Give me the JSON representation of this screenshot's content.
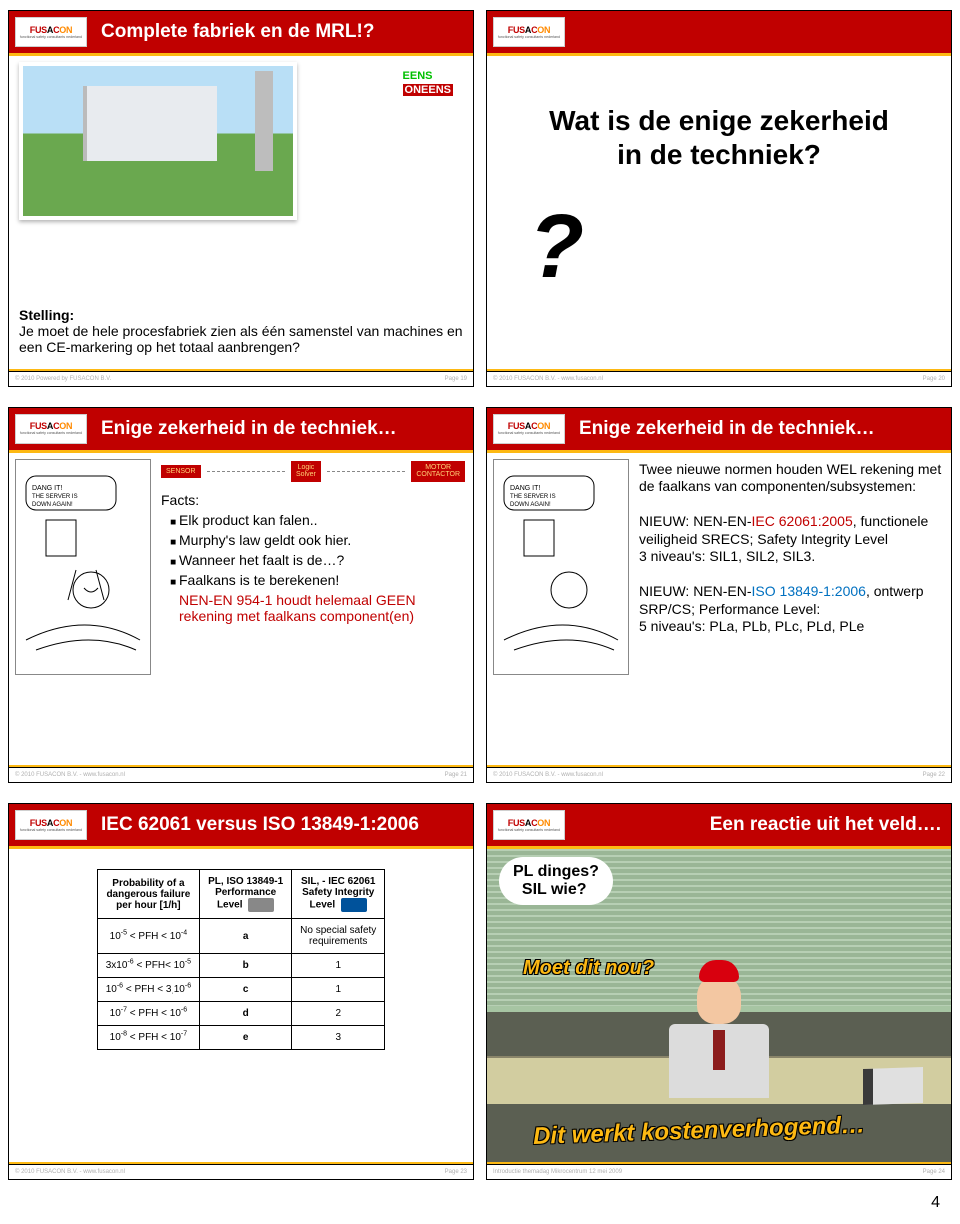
{
  "logo": {
    "text_fus": "FUS",
    "text_a": "A",
    "text_c": "C",
    "text_on": "ON",
    "sub": "functional safety consultants nederland"
  },
  "slide1": {
    "title": "Complete fabriek en de MRL!?",
    "eens": "EENS",
    "oneens": "ONEENS",
    "stelling_h": "Stelling:",
    "stelling": "Je moet de hele procesfabriek zien als één samenstel van machines en een CE-markering op het totaal aanbrengen?",
    "footer": "© 2010  Powered  by FUSACON  B.V.",
    "page": "Page 19"
  },
  "slide2": {
    "q_l1": "Wat is de enige zekerheid",
    "q_l2": "in de techniek?",
    "mark": "?",
    "footer": "© 2010 FUSACON B.V. - www.fusacon.nl",
    "page": "Page 20"
  },
  "slide3": {
    "title": "Enige zekerheid in de techniek…",
    "flow_sensor": "SENSOR",
    "flow_logic": "Logic\nSolver",
    "flow_motor": "MOTOR\nCONTACTOR",
    "facts_label": "Facts:",
    "f1": "Elk product kan falen..",
    "f2": "Murphy's law geldt ook hier.",
    "f3": "Wanneer het faalt is de…?",
    "f4": "Faalkans is te berekenen!",
    "f5": "NEN-EN 954-1 houdt helemaal GEEN rekening met faalkans component(en)",
    "footer": "© 2010 FUSACON B.V. - www.fusacon.nl",
    "page": "Page 21"
  },
  "slide4": {
    "title": "Enige zekerheid in de techniek…",
    "p1": "Twee nieuwe normen houden WEL rekening met de faalkans van componenten/subsystemen:",
    "p2_pre": "NIEUW: NEN-EN-",
    "p2_iec": "IEC 62061:2005",
    "p2_post": ", functionele veiligheid SRECS; Safety Integrity Level",
    "p2_line2": "3 niveau's: SIL1, SIL2, SIL3.",
    "p3_pre": "NIEUW: NEN-EN-",
    "p3_iso": "ISO 13849-1:2006",
    "p3_post": ", ontwerp SRP/CS; Performance Level:",
    "p3_line2": "5 niveau's: PLa, PLb, PLc, PLd, PLe",
    "footer": "© 2010 FUSACON B.V. - www.fusacon.nl",
    "page": "Page 22"
  },
  "slide5": {
    "title": "IEC 62061 versus ISO 13849-1:2006",
    "h1_l1": "Probability of a",
    "h1_l2": "dangerous failure",
    "h1_l3": "per hour  [1/h]",
    "h2_l1": "PL, ISO 13849-1",
    "h2_l2": "Performance",
    "h2_l3": "Level",
    "h3_l1": "SIL, - IEC 62061",
    "h3_l2": "Safety Integrity",
    "h3_l3": "Level",
    "rows": [
      {
        "p_html": "10<sup>-5</sup>  <  PFH  <  10<sup>-4</sup>",
        "pl": "a",
        "sil_html": "No special safety<br>requirements"
      },
      {
        "p_html": "3x10<sup>-6</sup> < PFH<  10<sup>-5</sup>",
        "pl": "b",
        "sil_html": "1"
      },
      {
        "p_html": "10<sup>-6</sup> < PFH < 3<sub>·</sub>10<sup>-6</sup>",
        "pl": "c",
        "sil_html": "1"
      },
      {
        "p_html": "10<sup>-7</sup>  <  PFH  <  10<sup>-6</sup>",
        "pl": "d",
        "sil_html": "2"
      },
      {
        "p_html": "10<sup>-8</sup>  <  PFH  <  10<sup>-7</sup>",
        "pl": "e",
        "sil_html": "3"
      }
    ],
    "footer": "© 2010 FUSACON B.V. - www.fusacon.nl",
    "page": "Page 23"
  },
  "slide6": {
    "title": "Een reactie uit het veld….",
    "think_l1": "PL dinges?",
    "think_l2": "SIL wie?",
    "y1": "Moet dit nou?",
    "y2": "Dit werkt kostenverhogend…",
    "footer": "Introductie  themadag Mikrocentrum 12 mei 2009",
    "page": "Page 24"
  },
  "page_number": "4"
}
